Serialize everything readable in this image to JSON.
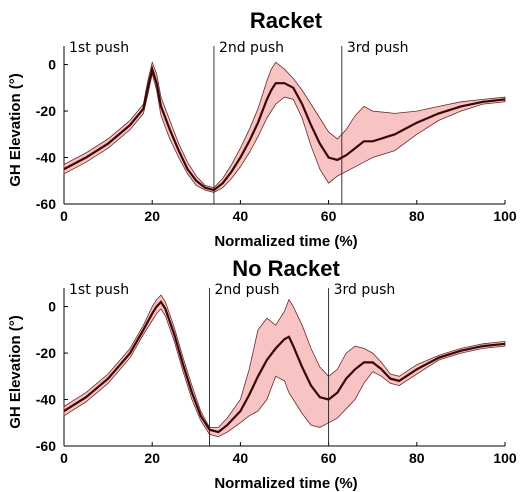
{
  "chart_data": [
    {
      "type": "line",
      "title": "Racket",
      "xlabel": "Normalized time (%)",
      "ylabel": "GH Elevation (°)",
      "xlim": [
        0,
        100
      ],
      "ylim": [
        -60,
        8
      ],
      "xticks": [
        "0",
        "20",
        "40",
        "60",
        "80",
        "100"
      ],
      "yticks": [
        "0",
        "-20",
        "-40",
        "-60"
      ],
      "phase_markers": [
        {
          "label": "1st push",
          "x": 0
        },
        {
          "label": "2nd push",
          "x": 34
        },
        {
          "label": "3rd push",
          "x": 63
        }
      ],
      "series": [
        {
          "x": [
            0,
            5,
            10,
            15,
            18,
            19,
            20,
            21,
            22,
            24,
            26,
            28,
            30,
            32,
            34,
            36,
            38,
            40,
            42,
            44,
            46,
            47,
            48,
            50,
            52,
            54,
            56,
            58,
            60,
            62,
            64,
            66,
            68,
            70,
            75,
            80,
            85,
            90,
            95,
            100
          ],
          "mean": [
            -45,
            -40,
            -34,
            -26,
            -19,
            -10,
            -2,
            -8,
            -18,
            -28,
            -37,
            -45,
            -50,
            -53,
            -54,
            -51,
            -46,
            -40,
            -33,
            -25,
            -15,
            -11,
            -8,
            -8,
            -10,
            -17,
            -26,
            -34,
            -40,
            -41,
            -39,
            -36,
            -33,
            -33,
            -30,
            -25,
            -21,
            -18,
            -16,
            -15
          ],
          "upper": [
            -43,
            -38,
            -32,
            -24,
            -17,
            -7,
            1,
            -4,
            -14,
            -24,
            -34,
            -42,
            -48,
            -52,
            -53,
            -49,
            -43,
            -36,
            -28,
            -19,
            -7,
            -2,
            1,
            -2,
            -6,
            -11,
            -17,
            -23,
            -29,
            -32,
            -28,
            -22,
            -18,
            -20,
            -21,
            -20,
            -18,
            -16,
            -15,
            -14
          ],
          "lower": [
            -47,
            -42,
            -36,
            -28,
            -21,
            -13,
            -4,
            -11,
            -22,
            -32,
            -40,
            -47,
            -52,
            -54,
            -55,
            -53,
            -49,
            -44,
            -38,
            -31,
            -23,
            -20,
            -17,
            -14,
            -15,
            -23,
            -35,
            -45,
            -51,
            -48,
            -46,
            -44,
            -42,
            -40,
            -37,
            -30,
            -24,
            -20,
            -17,
            -16
          ]
        }
      ]
    },
    {
      "type": "line",
      "title": "No Racket",
      "xlabel": "Normalized time (%)",
      "ylabel": "GH Elevation (°)",
      "xlim": [
        0,
        100
      ],
      "ylim": [
        -60,
        8
      ],
      "xticks": [
        "0",
        "20",
        "40",
        "60",
        "80",
        "100"
      ],
      "yticks": [
        "0",
        "-20",
        "-40",
        "-60"
      ],
      "phase_markers": [
        {
          "label": "1st push",
          "x": 0
        },
        {
          "label": "2nd push",
          "x": 33
        },
        {
          "label": "3rd push",
          "x": 60
        }
      ],
      "series": [
        {
          "x": [
            0,
            5,
            10,
            15,
            18,
            20,
            21,
            22,
            23,
            25,
            27,
            29,
            31,
            33,
            35,
            37,
            40,
            42,
            44,
            46,
            48,
            50,
            51,
            52,
            54,
            56,
            58,
            60,
            62,
            64,
            66,
            68,
            70,
            72,
            74,
            76,
            80,
            85,
            90,
            95,
            100
          ],
          "mean": [
            -45,
            -39,
            -31,
            -20,
            -10,
            -3,
            0,
            2,
            -1,
            -12,
            -25,
            -37,
            -47,
            -53,
            -54,
            -51,
            -45,
            -38,
            -30,
            -23,
            -18,
            -14,
            -13,
            -17,
            -26,
            -34,
            -39,
            -40,
            -37,
            -31,
            -27,
            -24,
            -24,
            -27,
            -31,
            -32,
            -27,
            -22,
            -19,
            -17,
            -16
          ],
          "upper": [
            -43,
            -37,
            -29,
            -18,
            -8,
            0,
            3,
            5,
            2,
            -9,
            -22,
            -34,
            -45,
            -52,
            -52,
            -48,
            -40,
            -27,
            -10,
            -5,
            -8,
            -2,
            3,
            0,
            -8,
            -18,
            -26,
            -30,
            -27,
            -20,
            -17,
            -18,
            -20,
            -24,
            -29,
            -30,
            -25,
            -21,
            -18,
            -16,
            -15
          ],
          "lower": [
            -47,
            -41,
            -33,
            -22,
            -12,
            -6,
            -3,
            -1,
            -4,
            -15,
            -28,
            -40,
            -49,
            -55,
            -56,
            -54,
            -50,
            -47,
            -45,
            -40,
            -30,
            -32,
            -37,
            -40,
            -46,
            -51,
            -52,
            -50,
            -48,
            -44,
            -40,
            -33,
            -28,
            -30,
            -33,
            -34,
            -29,
            -23,
            -20,
            -18,
            -17
          ]
        }
      ]
    }
  ]
}
